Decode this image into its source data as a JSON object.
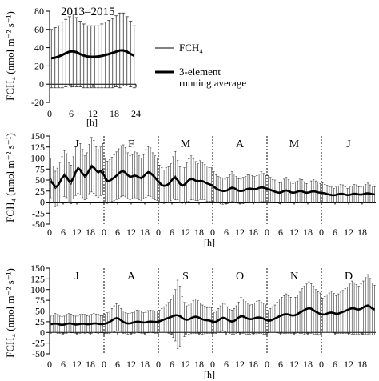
{
  "chart_data": [
    {
      "type": "line",
      "title": "2013–2015",
      "xlabel": "[h]",
      "ylabel": "FCH₄ (nmol m⁻² s⁻¹)",
      "xlim": [
        0,
        24
      ],
      "ylim": [
        -20,
        80
      ],
      "xticks": [
        0,
        6,
        12,
        18,
        24
      ],
      "yticks": [
        -20,
        0,
        20,
        40,
        60,
        80
      ],
      "legend": {
        "placement": "right",
        "entries": [
          {
            "label": "FCH₄",
            "style": "thin"
          },
          {
            "label": "3-element running average",
            "lines": [
              "3-element",
              "running average"
            ],
            "style": "thick"
          }
        ]
      },
      "series": [
        {
          "name": "FCH₄",
          "x": [
            0,
            1,
            2,
            3,
            4,
            5,
            6,
            7,
            8,
            9,
            10,
            11,
            12,
            13,
            14,
            15,
            16,
            17,
            18,
            19,
            20,
            21,
            22,
            23
          ],
          "values": [
            28,
            29,
            30,
            32,
            34,
            36,
            37,
            35,
            33,
            31,
            30,
            30,
            30,
            30,
            31,
            32,
            33,
            34,
            36,
            37,
            38,
            36,
            33,
            30
          ],
          "errors": [
            32,
            33,
            34,
            36,
            37,
            38,
            40,
            38,
            36,
            35,
            34,
            34,
            34,
            34,
            35,
            36,
            37,
            38,
            39,
            41,
            40,
            38,
            36,
            34
          ]
        }
      ]
    },
    {
      "type": "line",
      "xlabel": "[h]",
      "ylabel": "FCH₄ (nmol m⁻² s⁻¹)",
      "ylim": [
        -50,
        150
      ],
      "yticks": [
        -50,
        -25,
        0,
        25,
        50,
        75,
        100,
        125,
        150
      ],
      "xticks_per_month": [
        0,
        6,
        12,
        18
      ],
      "months": [
        "J",
        "F",
        "M",
        "A",
        "M",
        "J"
      ],
      "series": [
        {
          "name": "FCH₄",
          "values_by_month": [
            [
              55,
              40,
              30,
              35,
              45,
              55,
              65,
              60,
              45,
              40,
              55,
              70,
              80,
              75,
              65,
              55,
              60,
              75,
              85,
              80,
              70,
              65,
              70,
              75
            ],
            [
              50,
              45,
              48,
              52,
              55,
              60,
              65,
              70,
              72,
              68,
              60,
              55,
              58,
              62,
              60,
              55,
              52,
              58,
              65,
              70,
              68,
              60,
              55,
              52
            ],
            [
              42,
              38,
              35,
              38,
              40,
              45,
              55,
              60,
              50,
              40,
              35,
              38,
              45,
              50,
              55,
              52,
              48,
              45,
              50,
              48,
              45,
              42,
              40,
              40
            ],
            [
              35,
              30,
              28,
              26,
              25,
              24,
              26,
              30,
              35,
              32,
              28,
              25,
              24,
              26,
              28,
              30,
              32,
              30,
              28,
              30,
              32,
              35,
              33,
              30
            ],
            [
              30,
              28,
              25,
              24,
              22,
              20,
              22,
              26,
              28,
              25,
              22,
              20,
              22,
              24,
              26,
              25,
              22,
              20,
              22,
              24,
              25,
              24,
              22,
              20
            ],
            [
              22,
              20,
              18,
              17,
              16,
              15,
              16,
              18,
              20,
              19,
              17,
              15,
              16,
              18,
              20,
              19,
              17,
              16,
              18,
              20,
              21,
              19,
              18,
              17
            ]
          ],
          "errors_by_month": [
            [
              45,
              42,
              40,
              42,
              45,
              48,
              52,
              50,
              45,
              44,
              48,
              55,
              60,
              58,
              55,
              50,
              52,
              56,
              62,
              60,
              56,
              54,
              55,
              58
            ],
            [
              50,
              48,
              48,
              50,
              52,
              54,
              56,
              58,
              58,
              56,
              52,
              50,
              50,
              52,
              52,
              50,
              48,
              50,
              54,
              56,
              55,
              52,
              50,
              48
            ],
            [
              42,
              40,
              38,
              40,
              40,
              42,
              48,
              55,
              45,
              40,
              38,
              40,
              44,
              48,
              50,
              46,
              44,
              42,
              44,
              42,
              40,
              40,
              38,
              38
            ],
            [
              34,
              32,
              30,
              30,
              30,
              28,
              30,
              32,
              34,
              32,
              30,
              28,
              28,
              30,
              30,
              32,
              32,
              30,
              30,
              30,
              32,
              34,
              32,
              30
            ],
            [
              30,
              28,
              26,
              26,
              24,
              24,
              24,
              26,
              28,
              26,
              24,
              22,
              24,
              24,
              26,
              26,
              24,
              22,
              24,
              24,
              26,
              24,
              24,
              22
            ],
            [
              22,
              20,
              20,
              18,
              18,
              16,
              18,
              18,
              20,
              20,
              18,
              16,
              18,
              18,
              20,
              20,
              18,
              18,
              18,
              20,
              22,
              20,
              18,
              18
            ]
          ]
        }
      ]
    },
    {
      "type": "line",
      "xlabel": "[h]",
      "ylabel": "FCH₄ (nmol m⁻² s⁻¹)",
      "ylim": [
        -50,
        150
      ],
      "yticks": [
        -50,
        -25,
        0,
        25,
        50,
        75,
        100,
        125,
        150
      ],
      "xticks_per_month": [
        0,
        6,
        12,
        18
      ],
      "months": [
        "J",
        "A",
        "S",
        "O",
        "N",
        "D"
      ],
      "series": [
        {
          "name": "FCH₄",
          "values_by_month": [
            [
              18,
              20,
              22,
              20,
              18,
              17,
              18,
              20,
              22,
              21,
              19,
              18,
              18,
              20,
              21,
              20,
              19,
              18,
              20,
              22,
              21,
              20,
              19,
              19
            ],
            [
              20,
              22,
              24,
              28,
              32,
              35,
              33,
              28,
              24,
              22,
              20,
              21,
              22,
              24,
              26,
              25,
              24,
              22,
              23,
              25,
              26,
              25,
              24,
              24
            ],
            [
              26,
              28,
              30,
              32,
              34,
              36,
              38,
              40,
              42,
              38,
              34,
              30,
              28,
              30,
              33,
              36,
              38,
              36,
              33,
              30,
              29,
              28,
              28,
              28
            ],
            [
              22,
              24,
              28,
              32,
              36,
              34,
              30,
              26,
              24,
              26,
              30,
              35,
              40,
              38,
              34,
              32,
              30,
              31,
              33,
              35,
              36,
              34,
              32,
              30
            ],
            [
              25,
              28,
              30,
              32,
              35,
              38,
              40,
              42,
              44,
              42,
              40,
              38,
              40,
              43,
              46,
              50,
              52,
              55,
              58,
              56,
              52,
              48,
              45,
              44
            ],
            [
              40,
              42,
              44,
              46,
              48,
              45,
              42,
              44,
              46,
              48,
              50,
              52,
              55,
              58,
              56,
              54,
              52,
              55,
              58,
              62,
              65,
              60,
              55,
              52
            ]
          ],
          "errors_by_month": [
            [
              20,
              20,
              22,
              22,
              20,
              20,
              20,
              22,
              22,
              22,
              20,
              20,
              20,
              22,
              22,
              22,
              20,
              20,
              22,
              22,
              22,
              22,
              20,
              20
            ],
            [
              22,
              24,
              26,
              28,
              30,
              32,
              30,
              28,
              26,
              24,
              24,
              24,
              24,
              26,
              26,
              26,
              26,
              24,
              24,
              26,
              26,
              26,
              26,
              26
            ],
            [
              26,
              28,
              30,
              32,
              36,
              40,
              50,
              60,
              80,
              70,
              50,
              40,
              34,
              34,
              36,
              38,
              40,
              38,
              36,
              34,
              32,
              30,
              30,
              30
            ],
            [
              24,
              26,
              28,
              30,
              32,
              32,
              30,
              28,
              28,
              30,
              32,
              36,
              42,
              40,
              38,
              36,
              34,
              34,
              36,
              38,
              38,
              36,
              36,
              34
            ],
            [
              26,
              28,
              30,
              32,
              36,
              40,
              42,
              44,
              46,
              44,
              42,
              40,
              42,
              44,
              48,
              52,
              56,
              58,
              60,
              58,
              56,
              52,
              50,
              48
            ],
            [
              40,
              42,
              44,
              46,
              48,
              46,
              44,
              46,
              48,
              50,
              52,
              54,
              58,
              62,
              60,
              58,
              56,
              58,
              62,
              66,
              70,
              66,
              60,
              58
            ]
          ]
        }
      ]
    }
  ]
}
